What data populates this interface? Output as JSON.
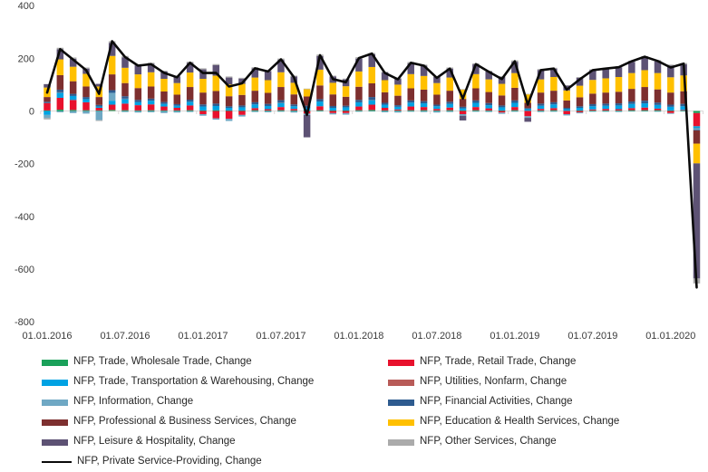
{
  "chart_data": {
    "type": "bar",
    "subtype": "stacked-bar-with-line-overlay",
    "title": "",
    "xlabel": "",
    "ylabel": "",
    "y_axis": {
      "min": -800,
      "max": 400,
      "step": 200,
      "tick_labels": [
        "400",
        "200",
        "0",
        "-200",
        "-400",
        "-600",
        "-800"
      ],
      "grid": false
    },
    "x_tick_labels": [
      "01.01.2016",
      "01.07.2016",
      "01.01.2017",
      "01.07.2017",
      "01.01.2018",
      "01.07.2018",
      "01.01.2019",
      "01.07.2019",
      "01.01.2020"
    ],
    "legend_position": "bottom",
    "legend_columns": 2,
    "months": [
      "01.01.2016",
      "01.02.2016",
      "01.03.2016",
      "01.04.2016",
      "01.05.2016",
      "01.06.2016",
      "01.07.2016",
      "01.08.2016",
      "01.09.2016",
      "01.10.2016",
      "01.11.2016",
      "01.12.2016",
      "01.01.2017",
      "01.02.2017",
      "01.03.2017",
      "01.04.2017",
      "01.05.2017",
      "01.06.2017",
      "01.07.2017",
      "01.08.2017",
      "01.09.2017",
      "01.10.2017",
      "01.11.2017",
      "01.12.2017",
      "01.01.2018",
      "01.02.2018",
      "01.03.2018",
      "01.04.2018",
      "01.05.2018",
      "01.06.2018",
      "01.07.2018",
      "01.08.2018",
      "01.09.2018",
      "01.10.2018",
      "01.11.2018",
      "01.12.2018",
      "01.01.2019",
      "01.02.2019",
      "01.03.2019",
      "01.04.2019",
      "01.05.2019",
      "01.06.2019",
      "01.07.2019",
      "01.08.2019",
      "01.09.2019",
      "01.10.2019",
      "01.11.2019",
      "01.12.2019",
      "01.01.2020",
      "01.02.2020",
      "01.03.2020"
    ],
    "bar_series": [
      {
        "name": "NFP, Trade, Wholesale Trade, Change",
        "color": "#1aa15a",
        "values": [
          2,
          5,
          4,
          3,
          2,
          4,
          3,
          2,
          3,
          2,
          2,
          3,
          2,
          3,
          2,
          2,
          3,
          2,
          3,
          2,
          2,
          3,
          2,
          2,
          3,
          4,
          2,
          2,
          3,
          3,
          2,
          3,
          2,
          3,
          2,
          2,
          3,
          1,
          2,
          3,
          1,
          2,
          2,
          2,
          2,
          3,
          3,
          3,
          2,
          2,
          -8
        ]
      },
      {
        "name": "NFP, Trade, Retail Trade, Change",
        "color": "#e8112d",
        "values": [
          28,
          45,
          38,
          30,
          10,
          20,
          25,
          20,
          22,
          15,
          10,
          18,
          -12,
          -28,
          -30,
          -15,
          8,
          5,
          12,
          6,
          -10,
          15,
          -8,
          -8,
          14,
          20,
          10,
          4,
          14,
          12,
          6,
          10,
          -12,
          12,
          8,
          -6,
          12,
          -20,
          6,
          8,
          -12,
          -5,
          4,
          6,
          5,
          8,
          10,
          6,
          -8,
          2,
          -50
        ]
      },
      {
        "name": "NFP, Trade, Transportation & Warehousing, Change",
        "color": "#00a2e3",
        "values": [
          -15,
          20,
          15,
          12,
          5,
          15,
          18,
          12,
          14,
          10,
          8,
          14,
          15,
          16,
          10,
          12,
          14,
          12,
          16,
          10,
          10,
          18,
          10,
          12,
          16,
          18,
          12,
          10,
          15,
          14,
          10,
          14,
          8,
          16,
          12,
          12,
          16,
          6,
          12,
          14,
          6,
          10,
          12,
          12,
          14,
          16,
          16,
          14,
          14,
          14,
          -8
        ]
      },
      {
        "name": "NFP, Utilities, Nonfarm, Change",
        "color": "#b85b58",
        "values": [
          0,
          1,
          0,
          0,
          0,
          0,
          1,
          0,
          0,
          0,
          0,
          0,
          0,
          0,
          0,
          0,
          0,
          0,
          1,
          0,
          0,
          0,
          0,
          0,
          0,
          1,
          0,
          0,
          0,
          0,
          0,
          0,
          0,
          0,
          0,
          0,
          0,
          0,
          0,
          0,
          0,
          0,
          0,
          0,
          0,
          0,
          0,
          0,
          0,
          0,
          -1
        ]
      },
      {
        "name": "NFP, Information, Change",
        "color": "#6fa8c4",
        "values": [
          -12,
          -5,
          -8,
          -10,
          -35,
          30,
          -4,
          -6,
          -5,
          -8,
          -6,
          -4,
          -6,
          -5,
          -8,
          -6,
          -4,
          -5,
          -3,
          -6,
          -5,
          -2,
          -5,
          -6,
          -3,
          -2,
          -5,
          -6,
          -3,
          -4,
          -6,
          -4,
          -6,
          -3,
          -4,
          -5,
          -3,
          -6,
          -4,
          -3,
          -5,
          -4,
          -3,
          -3,
          -4,
          -2,
          -2,
          -3,
          -3,
          -2,
          -5
        ]
      },
      {
        "name": "NFP, Financial Activities, Change",
        "color": "#2e5b8f",
        "values": [
          5,
          10,
          8,
          8,
          6,
          10,
          9,
          8,
          8,
          7,
          6,
          8,
          8,
          9,
          6,
          7,
          8,
          8,
          9,
          7,
          8,
          9,
          7,
          6,
          9,
          10,
          7,
          6,
          8,
          8,
          6,
          8,
          6,
          9,
          8,
          7,
          9,
          4,
          8,
          8,
          5,
          6,
          8,
          8,
          8,
          9,
          10,
          9,
          8,
          9,
          -2
        ]
      },
      {
        "name": "NFP, Professional & Business Services, Change",
        "color": "#7d2f2f",
        "values": [
          18,
          55,
          48,
          40,
          30,
          60,
          50,
          45,
          46,
          40,
          36,
          48,
          45,
          48,
          38,
          40,
          44,
          42,
          50,
          38,
          35,
          52,
          44,
          34,
          50,
          52,
          40,
          36,
          46,
          44,
          38,
          42,
          30,
          46,
          42,
          38,
          48,
          20,
          42,
          44,
          28,
          34,
          40,
          42,
          44,
          48,
          52,
          50,
          46,
          48,
          -50
        ]
      },
      {
        "name": "NFP, Education & Health Services, Change",
        "color": "#ffc000",
        "values": [
          36,
          60,
          55,
          48,
          40,
          70,
          58,
          52,
          54,
          48,
          44,
          55,
          52,
          58,
          45,
          42,
          50,
          48,
          56,
          44,
          28,
          60,
          44,
          40,
          58,
          62,
          46,
          42,
          54,
          52,
          44,
          50,
          35,
          54,
          48,
          44,
          56,
          32,
          50,
          52,
          38,
          44,
          52,
          54,
          56,
          60,
          64,
          62,
          58,
          60,
          -75
        ]
      },
      {
        "name": "NFP, Leisure & Hospitality, Change",
        "color": "#5d5274",
        "values": [
          13,
          38,
          30,
          20,
          10,
          50,
          40,
          34,
          32,
          28,
          25,
          37,
          36,
          40,
          26,
          20,
          35,
          34,
          47,
          24,
          -85,
          52,
          24,
          26,
          49,
          48,
          29,
          23,
          41,
          39,
          23,
          34,
          -18,
          37,
          30,
          26,
          43,
          -15,
          36,
          32,
          18,
          30,
          37,
          36,
          37,
          42,
          48,
          44,
          44,
          42,
          -437
        ]
      },
      {
        "name": "NFP, Other Services, Change",
        "color": "#ababab",
        "values": [
          -5,
          6,
          5,
          4,
          -3,
          6,
          5,
          5,
          4,
          3,
          3,
          4,
          4,
          4,
          4,
          3,
          4,
          4,
          5,
          3,
          2,
          5,
          3,
          3,
          5,
          5,
          3,
          3,
          5,
          4,
          3,
          4,
          2,
          4,
          3,
          3,
          5,
          2,
          3,
          3,
          2,
          3,
          3,
          4,
          4,
          5,
          5,
          5,
          4,
          5,
          -19
        ]
      }
    ],
    "line_series": {
      "name": "NFP, Private Service-Providing, Change",
      "color": "#0a0a0a",
      "values": [
        70,
        235,
        195,
        155,
        65,
        265,
        205,
        172,
        178,
        145,
        128,
        183,
        144,
        145,
        93,
        105,
        162,
        150,
        196,
        128,
        -15,
        212,
        121,
        109,
        201,
        218,
        144,
        120,
        183,
        172,
        126,
        161,
        47,
        178,
        149,
        121,
        189,
        24,
        155,
        161,
        81,
        120,
        155,
        161,
        166,
        189,
        206,
        190,
        165,
        180,
        -670
      ]
    },
    "axis_color": "#dcd7d7",
    "label_color": "#3b3b3b"
  }
}
